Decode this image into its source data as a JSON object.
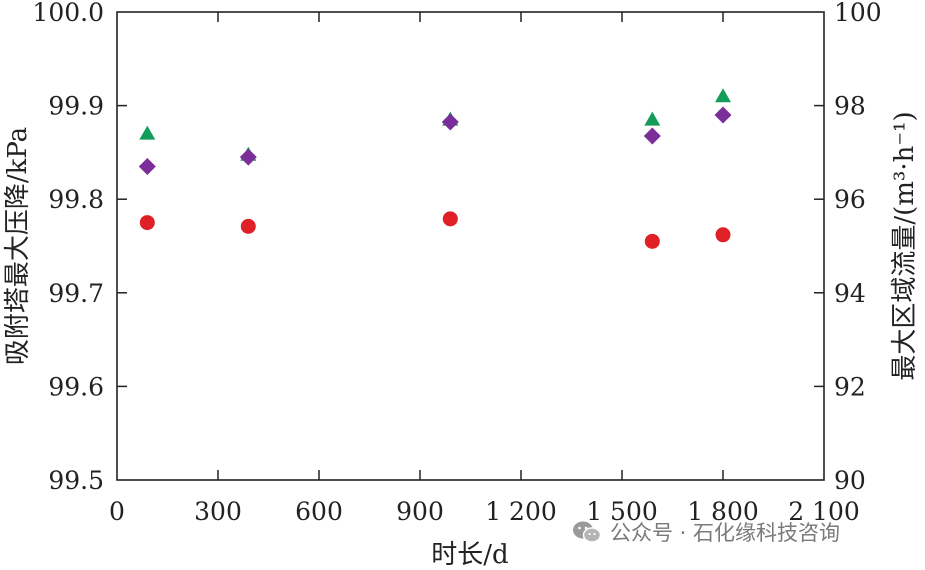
{
  "chart_data": {
    "type": "scatter",
    "xlabel": "时长/d",
    "ylabel_left": "吸附塔最大压降/kPa",
    "ylabel_right": "最大区域流量/(m³·h⁻¹)",
    "xlim": [
      0,
      2100
    ],
    "ylim_left": [
      99.5,
      100.0
    ],
    "ylim_right": [
      90,
      100
    ],
    "x_ticks": [
      0,
      300,
      600,
      900,
      1200,
      1500,
      1800,
      2100
    ],
    "x_tick_labels": [
      "0",
      "300",
      "600",
      "900",
      "1 200",
      "1 500",
      "1 800",
      "2 100"
    ],
    "y_left_ticks": [
      99.5,
      99.6,
      99.7,
      99.8,
      99.9,
      100.0
    ],
    "y_left_tick_labels": [
      "99.5",
      "99.6",
      "99.7",
      "99.8",
      "99.9",
      "100.0"
    ],
    "y_right_ticks": [
      90,
      92,
      94,
      96,
      98,
      100
    ],
    "y_right_tick_labels": [
      "90",
      "92",
      "94",
      "96",
      "98",
      "100"
    ],
    "grid": false,
    "series": [
      {
        "marker": "circle",
        "color": "#e02027",
        "axis": "left",
        "points": [
          [
            90,
            99.775
          ],
          [
            390,
            99.771
          ],
          [
            990,
            99.779
          ],
          [
            1590,
            99.755
          ],
          [
            1800,
            99.762
          ]
        ]
      },
      {
        "marker": "triangle",
        "color": "#149c5a",
        "axis": "right",
        "points": [
          [
            90,
            97.4
          ],
          [
            390,
            96.95
          ],
          [
            990,
            97.7
          ],
          [
            1590,
            97.7
          ],
          [
            1800,
            98.2
          ]
        ]
      },
      {
        "marker": "diamond",
        "color": "#7b2d9a",
        "axis": "right",
        "points": [
          [
            90,
            96.7
          ],
          [
            390,
            96.9
          ],
          [
            990,
            97.65
          ],
          [
            1590,
            97.35
          ],
          [
            1800,
            97.8
          ]
        ]
      }
    ]
  },
  "watermark": {
    "text": "公众号 · 石化缘科技咨询",
    "icon": "wechat-icon"
  }
}
